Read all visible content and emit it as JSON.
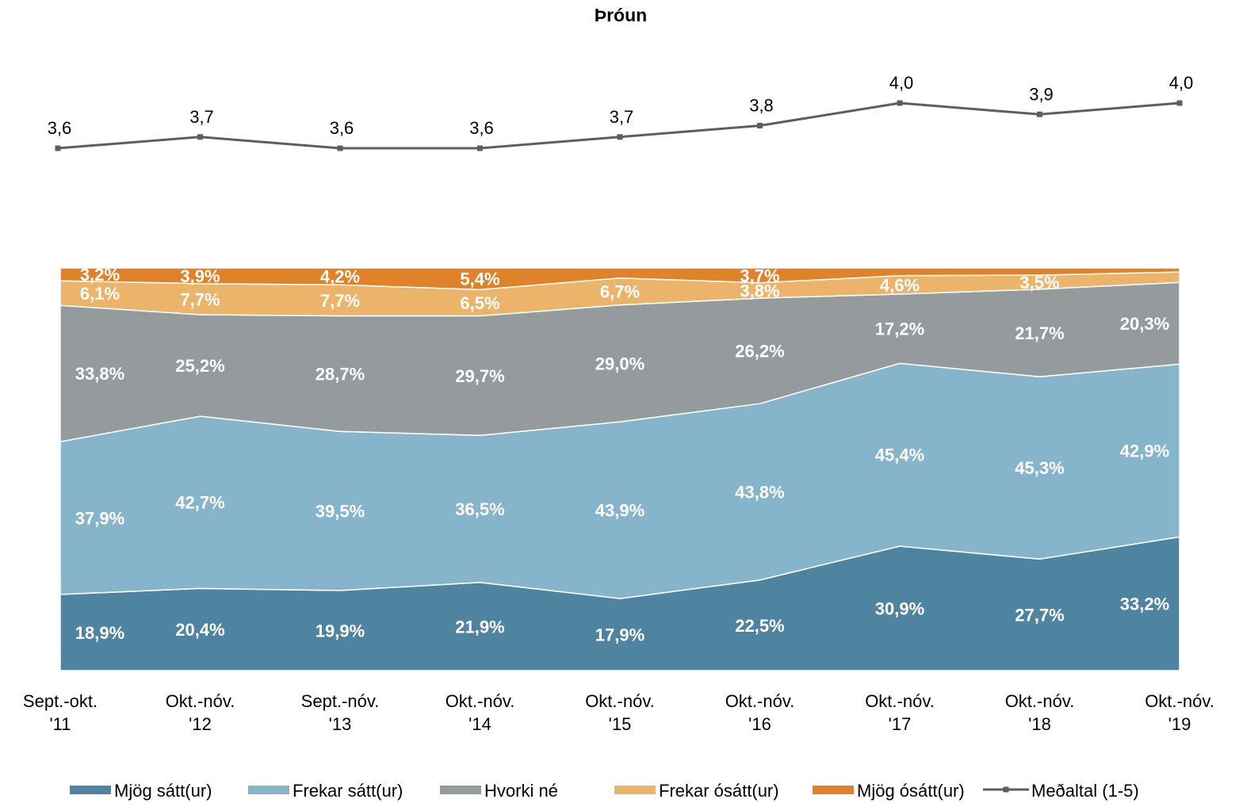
{
  "chart_data": {
    "type": "area",
    "stacked": true,
    "title": "Þróun",
    "categories": [
      {
        "line1": "Sept.-okt.",
        "line2": "'11"
      },
      {
        "line1": "Okt.-nóv.",
        "line2": "'12"
      },
      {
        "line1": "Sept.-nóv.",
        "line2": "'13"
      },
      {
        "line1": "Okt.-nóv.",
        "line2": "'14"
      },
      {
        "line1": "Okt.-nóv.",
        "line2": "'15"
      },
      {
        "line1": "Okt.-nóv.",
        "line2": "'16"
      },
      {
        "line1": "Okt.-nóv.",
        "line2": "'17"
      },
      {
        "line1": "Okt.-nóv.",
        "line2": "'18"
      },
      {
        "line1": "Okt.-nóv.",
        "line2": "'19"
      }
    ],
    "ylim": [
      0,
      100
    ],
    "series": [
      {
        "name": "Mjög sátt(ur)",
        "color": "#4f84a0",
        "values": [
          18.9,
          20.4,
          19.9,
          21.9,
          17.9,
          22.5,
          30.9,
          27.7,
          33.2
        ],
        "labels": [
          "18,9%",
          "20,4%",
          "19,9%",
          "21,9%",
          "17,9%",
          "22,5%",
          "30,9%",
          "27,7%",
          "33,2%"
        ]
      },
      {
        "name": "Frekar sátt(ur)",
        "color": "#86b5cb",
        "values": [
          37.9,
          42.7,
          39.5,
          36.5,
          43.9,
          43.8,
          45.4,
          45.3,
          42.9
        ],
        "labels": [
          "37,9%",
          "42,7%",
          "39,5%",
          "36,5%",
          "43,9%",
          "43,8%",
          "45,4%",
          "45,3%",
          "42,9%"
        ]
      },
      {
        "name": "Hvorki né",
        "color": "#959b9d",
        "values": [
          33.8,
          25.2,
          28.7,
          29.7,
          29.0,
          26.2,
          17.2,
          21.7,
          20.3
        ],
        "labels": [
          "33,8%",
          "25,2%",
          "28,7%",
          "29,7%",
          "29,0%",
          "26,2%",
          "17,2%",
          "21,7%",
          "20,3%"
        ]
      },
      {
        "name": "Frekar ósátt(ur)",
        "color": "#ecb46a",
        "values": [
          6.1,
          7.7,
          7.7,
          6.5,
          6.7,
          3.8,
          4.6,
          3.5,
          2.6
        ],
        "labels": [
          "6,1%",
          "7,7%",
          "7,7%",
          "6,5%",
          "6,7%",
          "3,8%",
          "4,6%",
          "3,5%",
          ""
        ]
      },
      {
        "name": "Mjög ósátt(ur)",
        "color": "#e0822a",
        "values": [
          3.2,
          3.9,
          4.2,
          5.4,
          2.5,
          3.7,
          1.9,
          1.8,
          1.0
        ],
        "labels": [
          "3,2%",
          "3,9%",
          "4,2%",
          "5,4%",
          "",
          "3,7%",
          "",
          "",
          ""
        ]
      }
    ],
    "average": {
      "name": "Meðaltal (1-5)",
      "color": "#5e5e5e",
      "values": [
        3.6,
        3.7,
        3.6,
        3.6,
        3.7,
        3.8,
        4.0,
        3.9,
        4.0
      ],
      "labels": [
        "3,6",
        "3,7",
        "3,6",
        "3,6",
        "3,7",
        "3,8",
        "4,0",
        "3,9",
        "4,0"
      ]
    },
    "legend_position": "bottom"
  }
}
